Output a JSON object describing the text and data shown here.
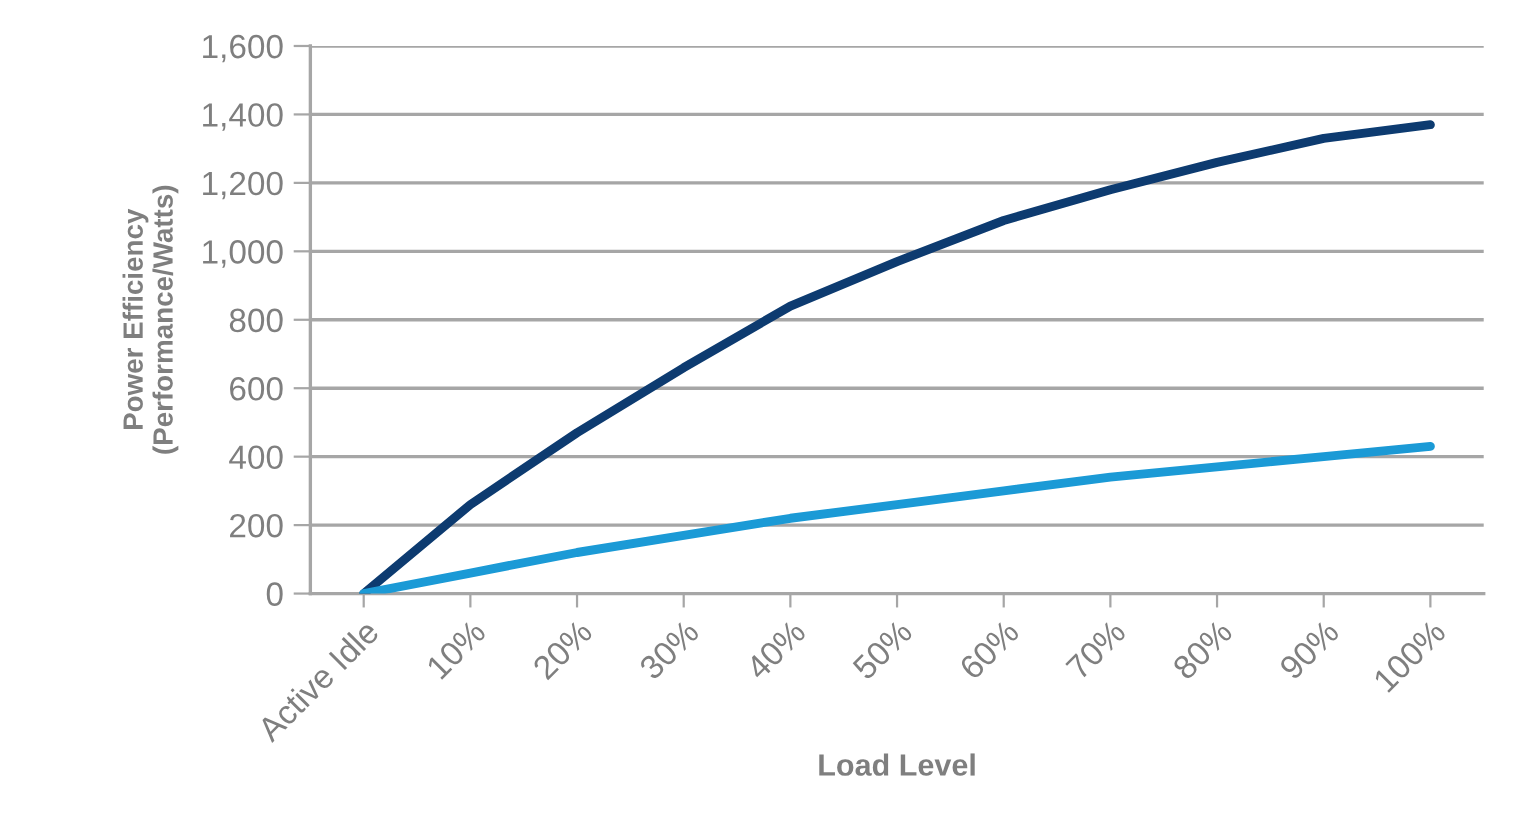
{
  "chart_data": {
    "type": "line",
    "xlabel": "Load Level",
    "ylabel": "Power Efficiency\n(Performance/Watts)",
    "categories": [
      "Active Idle",
      "10%",
      "20%",
      "30%",
      "40%",
      "50%",
      "60%",
      "70%",
      "80%",
      "90%",
      "100%"
    ],
    "series": [
      {
        "color": "#0d3b70",
        "values": [
          0,
          260,
          470,
          660,
          840,
          970,
          1090,
          1180,
          1260,
          1330,
          1370
        ]
      },
      {
        "color": "#1b9ad6",
        "values": [
          0,
          60,
          120,
          170,
          220,
          260,
          300,
          340,
          370,
          400,
          430
        ]
      }
    ],
    "ylim": [
      0,
      1600
    ],
    "yticks": [
      0,
      {
        "value": 200,
        "label": "200"
      },
      {
        "value": 400,
        "label": "400"
      },
      {
        "value": 600,
        "label": "600"
      },
      {
        "value": 800,
        "label": "800"
      },
      {
        "value": 1000,
        "label": "1,000"
      },
      {
        "value": 1200,
        "label": "1,200"
      },
      {
        "value": 1400,
        "label": "1,400"
      },
      {
        "value": 1600,
        "label": "1,600"
      }
    ],
    "grid": "y",
    "marker": "none",
    "line_style": "solid"
  }
}
